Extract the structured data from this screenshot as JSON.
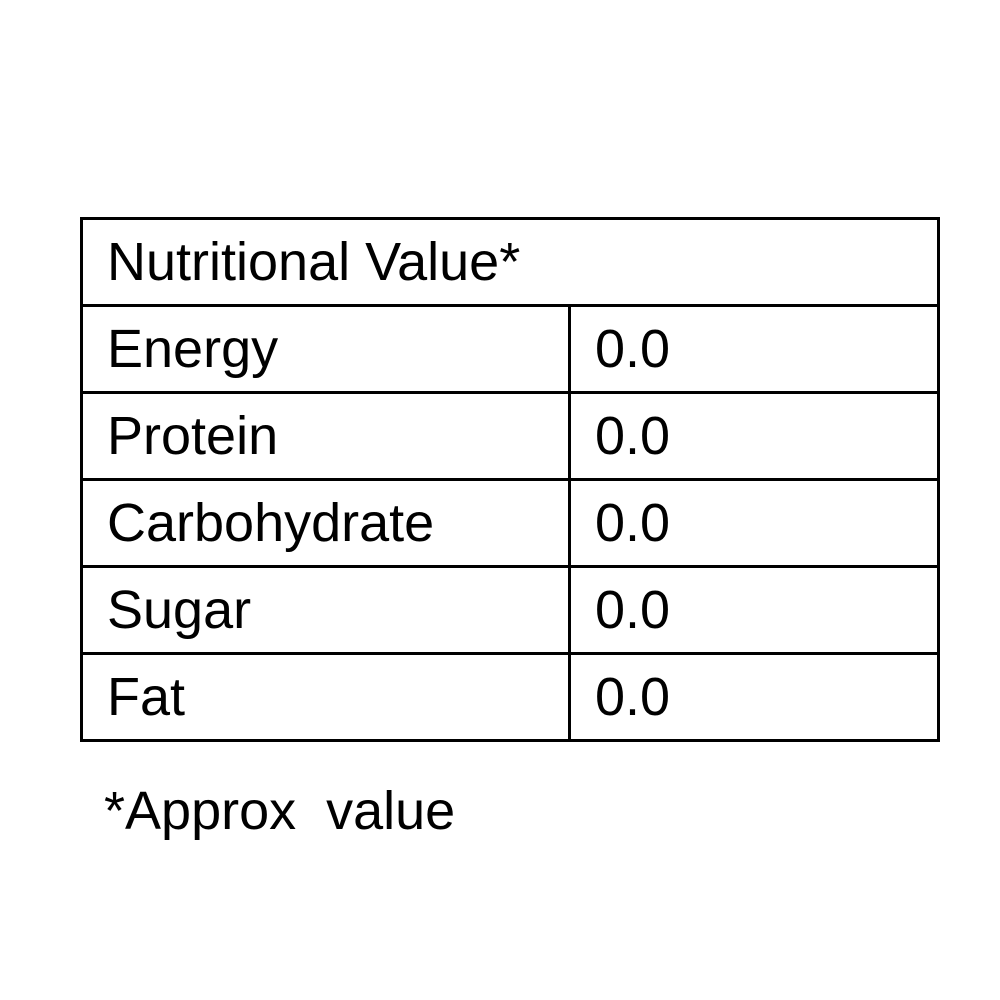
{
  "table": {
    "header": "Nutritional Value*",
    "rows": [
      [
        "Energy",
        "0.0"
      ],
      [
        "Protein",
        "0.0"
      ],
      [
        "Carbohydrate",
        "0.0"
      ],
      [
        "Sugar",
        "0.0"
      ],
      [
        "Fat",
        "0.0"
      ]
    ]
  },
  "footnote": "*Approx  value"
}
